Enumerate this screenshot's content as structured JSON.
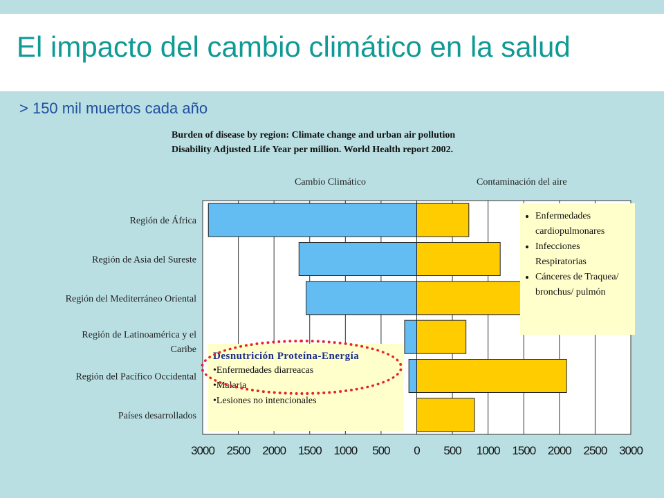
{
  "title": "El impacto del cambio climático en la salud",
  "subtitle": "> 150 mil muertos cada año",
  "source_line1": "Burden of disease by region: Climate change and urban air pollution",
  "source_line2": "Disability Adjusted Life Year per million. World Health report 2002.",
  "colors": {
    "climate": "#63bdf2",
    "air": "#ffcc00",
    "accent": "#0f9a94",
    "note_bg": "#ffffcc",
    "ellipse": "#e8212b"
  },
  "chart_data": {
    "type": "bar",
    "orientation": "horizontal-diverging",
    "categories": [
      "Región de África",
      "Región de Asia del Sureste",
      "Región del Mediterráneo Oriental",
      "Región de Latinoamérica y el Caribe",
      "Región del Pacífico Occidental",
      "Países desarrollados"
    ],
    "series": [
      {
        "name": "Cambio Climático",
        "direction": "left",
        "values": [
          2920,
          1650,
          1550,
          170,
          110,
          0
        ]
      },
      {
        "name": "Contaminación del aire",
        "direction": "right",
        "values": [
          730,
          1170,
          1500,
          690,
          2100,
          810
        ]
      }
    ],
    "xlim": [
      -3000,
      3000
    ],
    "ticks": [
      -3000,
      -2500,
      -2000,
      -1500,
      -1000,
      -500,
      0,
      500,
      1000,
      1500,
      2000,
      2500,
      3000
    ],
    "tick_labels": [
      "3000",
      "2500",
      "2000",
      "1500",
      "1000",
      "500",
      "0",
      "500",
      "1000",
      "1500",
      "2000",
      "2500",
      "3000"
    ],
    "grid": true
  },
  "notes": {
    "air": [
      "Enfermedades cardiopulmonares",
      "Infecciones Respiratorias",
      "Cánceres de Traquea/ bronchus/ pulmón"
    ],
    "climate_title": "Desnutrición Proteína-Energía",
    "climate": [
      "•Enfermedades diarreacas",
      "•Malaria",
      "•Lesiones no intencionales"
    ]
  }
}
